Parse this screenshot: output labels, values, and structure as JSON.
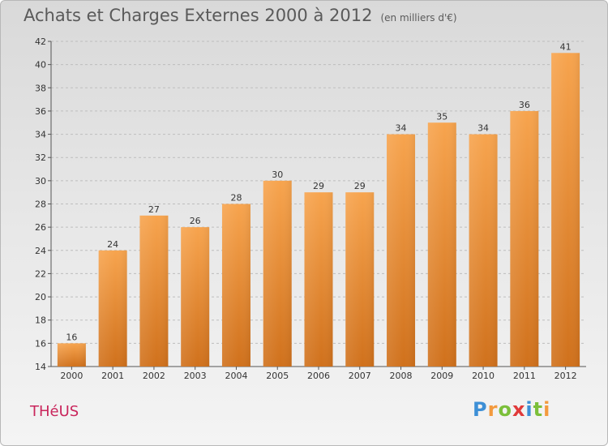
{
  "chart_data": {
    "type": "bar",
    "title": "Achats et Charges Externes 2000 à 2012",
    "subtitle": "(en milliers d'€)",
    "categories": [
      "2000",
      "2001",
      "2002",
      "2003",
      "2004",
      "2005",
      "2006",
      "2007",
      "2008",
      "2009",
      "2010",
      "2011",
      "2012"
    ],
    "values": [
      16,
      24,
      27,
      26,
      28,
      30,
      29,
      29,
      34,
      35,
      34,
      36,
      41
    ],
    "ylim": [
      14,
      42
    ],
    "yticks": [
      14,
      16,
      18,
      20,
      22,
      24,
      26,
      28,
      30,
      32,
      34,
      36,
      38,
      40,
      42
    ],
    "grid": true,
    "bar_color": "#f39a3e"
  },
  "footer": {
    "place": "THéUS",
    "brand_letters": [
      "P",
      "r",
      "o",
      "x",
      "i",
      "t",
      "i"
    ],
    "brand_colors": [
      "#3d8fd6",
      "#f39a3e",
      "#7bbf3a",
      "#e03a3a",
      "#3d8fd6",
      "#7bbf3a",
      "#f39a3e"
    ]
  }
}
